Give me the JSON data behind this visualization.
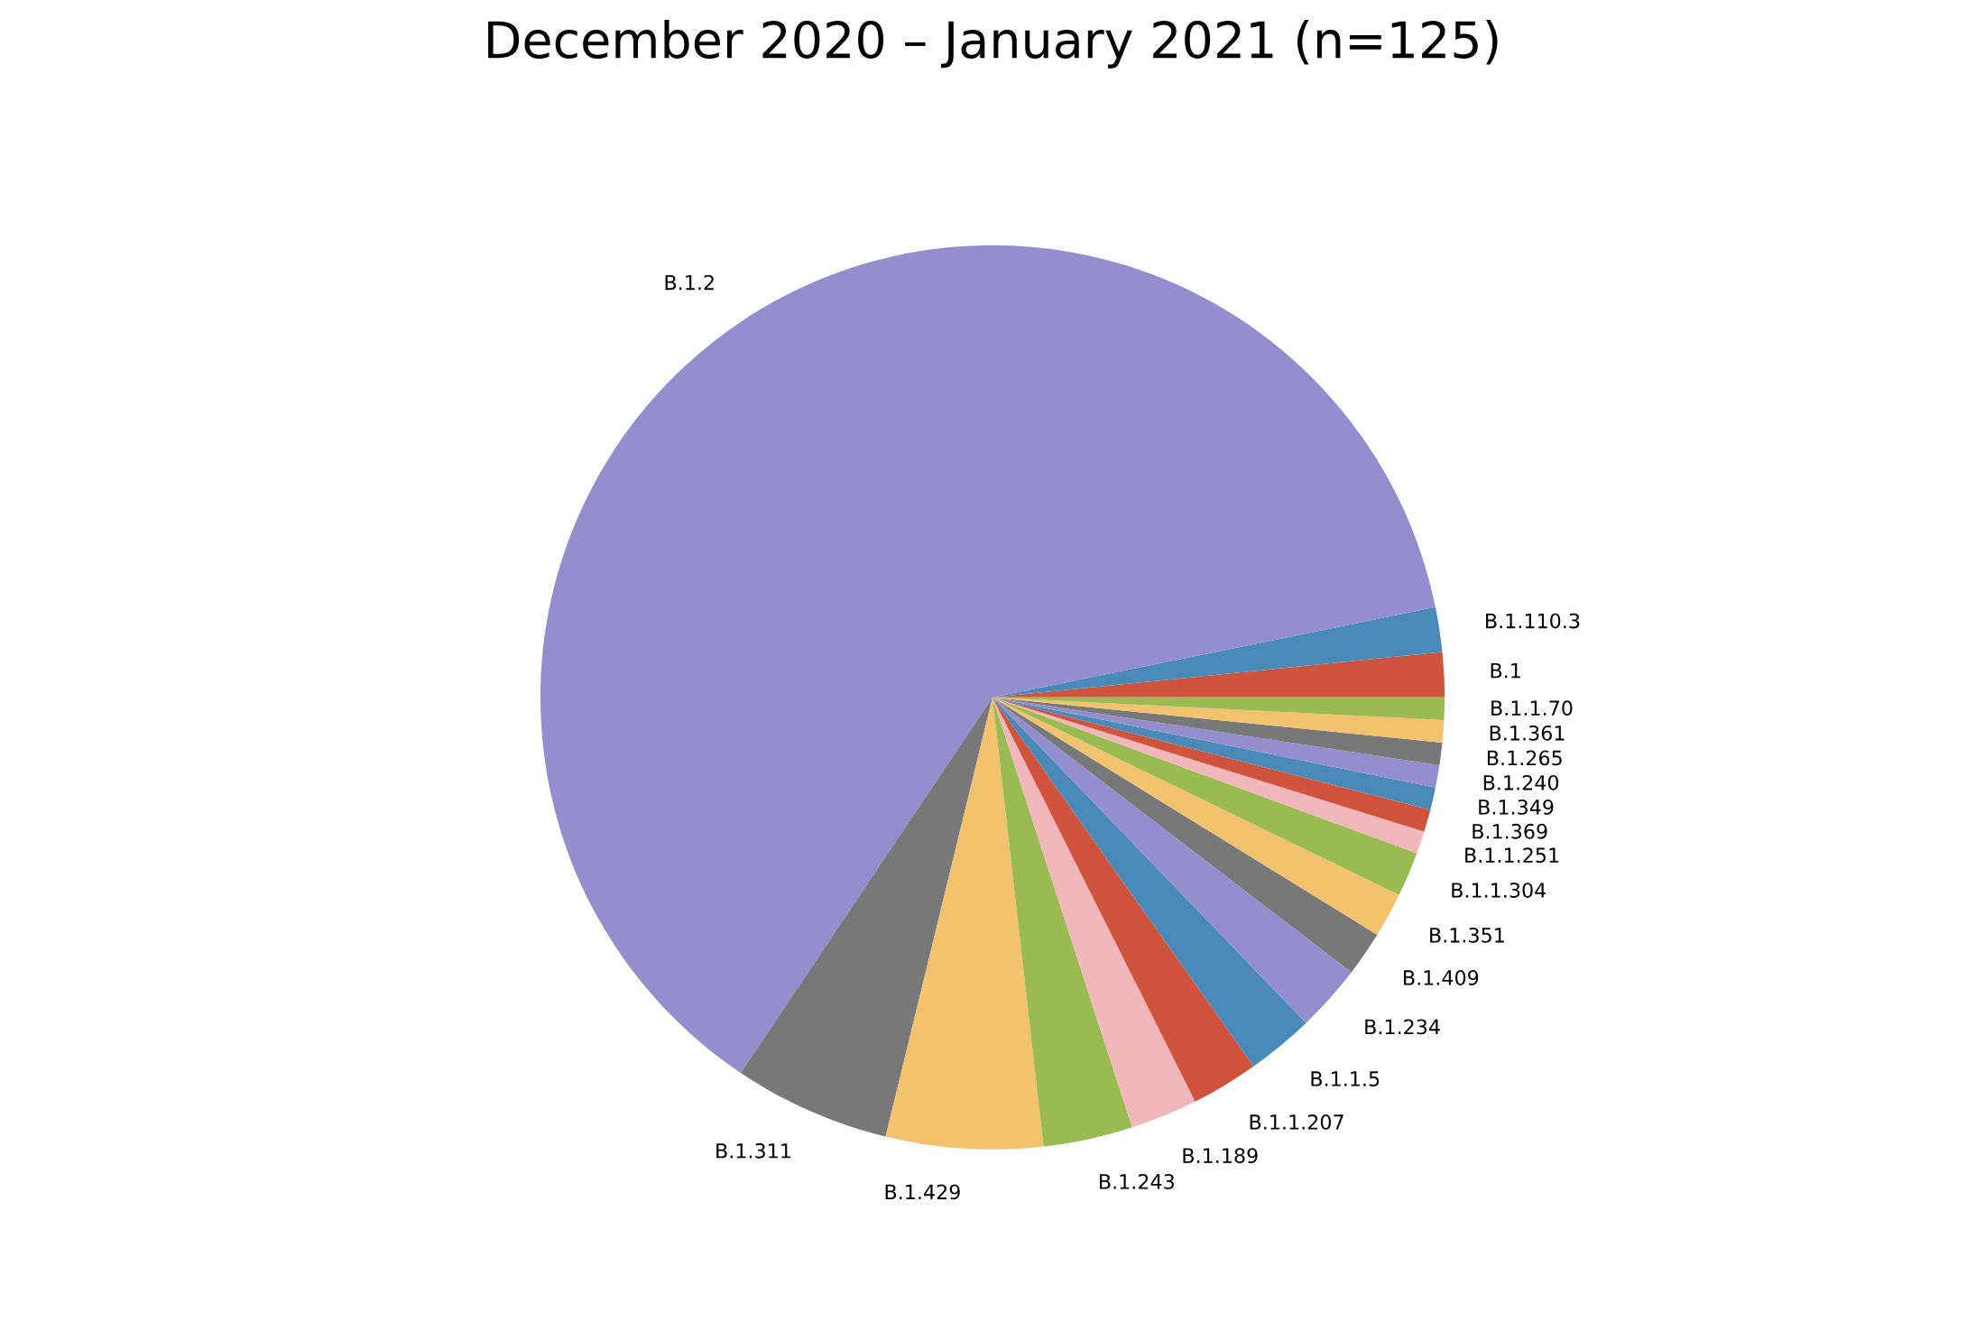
{
  "chart_data": {
    "type": "pie",
    "title": "December 2020 – January 2021 (n=125)",
    "categories": [
      "B.1",
      "B.1.110.3",
      "B.1.2",
      "B.1.311",
      "B.1.429",
      "B.1.243",
      "B.1.189",
      "B.1.1.207",
      "B.1.1.5",
      "B.1.234",
      "B.1.409",
      "B.1.351",
      "B.1.1.304",
      "B.1.1.251",
      "B.1.369",
      "B.1.349",
      "B.1.240",
      "B.1.265",
      "B.1.361",
      "B.1.1.70"
    ],
    "values": [
      1.6,
      1.6,
      62.4,
      5.6,
      5.6,
      3.2,
      2.4,
      2.4,
      2.4,
      2.4,
      1.6,
      1.6,
      1.6,
      0.8,
      0.8,
      0.8,
      0.8,
      0.8,
      0.8,
      0.8
    ],
    "colors": [
      "#d0533d",
      "#4a8ab8",
      "#958ece",
      "#787878",
      "#f2c26e",
      "#9aba52",
      "#f2b7ba",
      "#d0533d",
      "#4a8ab8",
      "#958ece",
      "#787878",
      "#f2c26e",
      "#9aba52",
      "#f2b7ba",
      "#d0533d",
      "#4a8ab8",
      "#958ece",
      "#787878",
      "#f2c26e",
      "#9aba52"
    ]
  }
}
